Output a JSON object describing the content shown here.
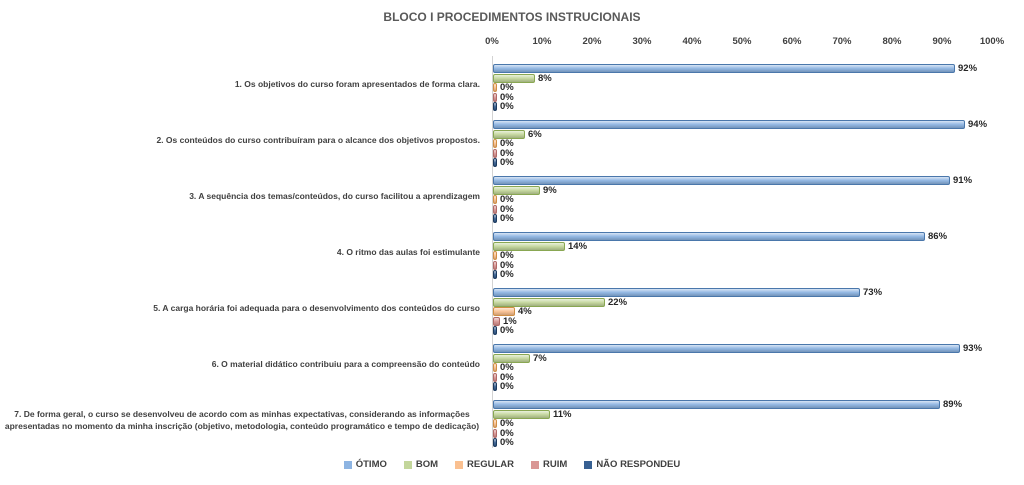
{
  "chart_data": {
    "type": "bar",
    "orientation": "horizontal",
    "title": "BLOCO I PROCEDIMENTOS INSTRUCIONAIS",
    "categories": [
      "1. Os objetivos do curso foram apresentados de forma clara.",
      "2. Os conteúdos do curso contribuíram para o alcance dos objetivos propostos.",
      "3. A sequência dos temas/conteúdos, do curso facilitou a aprendizagem",
      "4. O ritmo das aulas foi estimulante",
      "5. A carga horária foi adequada para o desenvolvimento dos conteúdos do curso",
      "6. O material didático contribuiu para a compreensão do conteúdo",
      "7. De forma geral, o curso se desenvolveu de acordo com as minhas expectativas, considerando as informações apresentadas no momento da minha inscrição (objetivo, metodologia, conteúdo programático e tempo de dedicação)"
    ],
    "series": [
      {
        "name": "ÓTIMO",
        "color": "#8db4e2",
        "border": "#4a77ab",
        "values": [
          92,
          94,
          91,
          86,
          73,
          93,
          89
        ]
      },
      {
        "name": "BOM",
        "color": "#c3d69b",
        "border": "#89a752",
        "values": [
          8,
          6,
          9,
          14,
          22,
          7,
          11
        ]
      },
      {
        "name": "REGULAR",
        "color": "#fac090",
        "border": "#d08f44",
        "values": [
          0,
          0,
          0,
          0,
          4,
          0,
          0
        ]
      },
      {
        "name": "RUIM",
        "color": "#d99694",
        "border": "#b16a67",
        "values": [
          0,
          0,
          0,
          0,
          1,
          0,
          0
        ]
      },
      {
        "name": "NÃO RESPONDEU",
        "color": "#376092",
        "border": "#1c3a5e",
        "values": [
          0,
          0,
          0,
          0,
          0,
          0,
          0
        ]
      }
    ],
    "x_ticks": [
      "0%",
      "10%",
      "20%",
      "30%",
      "40%",
      "50%",
      "60%",
      "70%",
      "80%",
      "90%",
      "100%"
    ],
    "xlim": [
      0,
      100
    ],
    "value_suffix": "%",
    "legend_position": "bottom",
    "grid": false
  }
}
